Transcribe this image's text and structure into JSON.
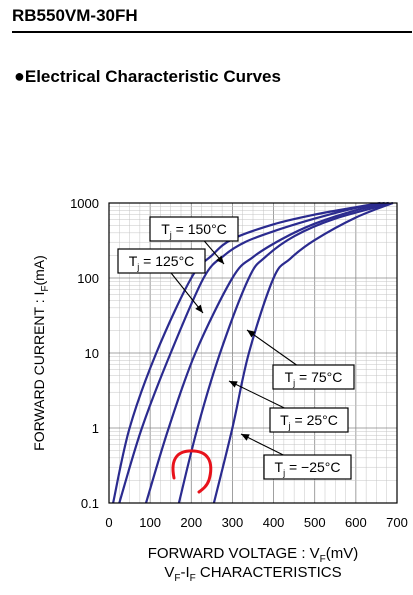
{
  "header": {
    "part_number": "RB550VM-30FH"
  },
  "section": {
    "bullet": "●",
    "title": "Electrical Characteristic Curves"
  },
  "chart_data": {
    "type": "line",
    "title": "VF-IF CHARACTERISTICS",
    "title_parts": {
      "pre": "V",
      "sub1": "F",
      "mid": "-I",
      "sub2": "F",
      "post": " CHARACTERISTICS"
    },
    "xlabel": "FORWARD VOLTAGE : VF(mV)",
    "xlabel_parts": {
      "pre": "FORWARD VOLTAGE : V",
      "sub": "F",
      "post": "(mV)"
    },
    "ylabel": "FORWARD CURRENT : IF(mA)",
    "ylabel_parts": {
      "pre": "FORWARD CURRENT : I",
      "sub": "F",
      "post": "(mA)"
    },
    "x_scale": "linear",
    "y_scale": "log",
    "xlim": [
      0,
      700
    ],
    "ylim": [
      0.1,
      1000
    ],
    "x_ticks": [
      0,
      100,
      200,
      300,
      400,
      500,
      600,
      700
    ],
    "x_tick_labels": [
      "0",
      "100",
      "200",
      "300",
      "400",
      "500",
      "600",
      "700"
    ],
    "y_ticks": [
      0.1,
      1,
      10,
      100,
      1000
    ],
    "y_tick_labels": [
      "0.1",
      "1",
      "10",
      "100",
      "1000"
    ],
    "grid": true,
    "series_color": "#2b2b8f",
    "series": [
      {
        "label": {
          "pre": "T",
          "sub": "j",
          "post": " = 150°C"
        },
        "points": [
          [
            10,
            0.1
          ],
          [
            50,
            1
          ],
          [
            115,
            10
          ],
          [
            200,
            100
          ],
          [
            250,
            200
          ],
          [
            300,
            330
          ],
          [
            400,
            520
          ],
          [
            500,
            700
          ],
          [
            600,
            880
          ],
          [
            660,
            1000
          ]
        ]
      },
      {
        "label": {
          "pre": "T",
          "sub": "j",
          "post": " = 125°C"
        },
        "points": [
          [
            25,
            0.1
          ],
          [
            80,
            1
          ],
          [
            150,
            10
          ],
          [
            230,
            100
          ],
          [
            280,
            200
          ],
          [
            330,
            300
          ],
          [
            400,
            420
          ],
          [
            500,
            620
          ],
          [
            600,
            860
          ],
          [
            670,
            1000
          ]
        ]
      },
      {
        "label": {
          "pre": "T",
          "sub": "j",
          "post": " = 75°C"
        },
        "points": [
          [
            90,
            0.1
          ],
          [
            145,
            1
          ],
          [
            210,
            10
          ],
          [
            300,
            100
          ],
          [
            350,
            190
          ],
          [
            420,
            330
          ],
          [
            500,
            530
          ],
          [
            600,
            800
          ],
          [
            680,
            1000
          ]
        ]
      },
      {
        "label": {
          "pre": "T",
          "sub": "j",
          "post": " = 25°C"
        },
        "points": [
          [
            170,
            0.1
          ],
          [
            215,
            1
          ],
          [
            270,
            10
          ],
          [
            340,
            100
          ],
          [
            380,
            190
          ],
          [
            450,
            360
          ],
          [
            550,
            620
          ],
          [
            690,
            1000
          ]
        ]
      },
      {
        "label": {
          "pre": "T",
          "sub": "j",
          "post": " = −25°C"
        },
        "points": [
          [
            255,
            0.1
          ],
          [
            300,
            1
          ],
          [
            340,
            10
          ],
          [
            400,
            100
          ],
          [
            440,
            180
          ],
          [
            500,
            320
          ],
          [
            600,
            640
          ],
          [
            690,
            1000
          ]
        ]
      }
    ]
  }
}
